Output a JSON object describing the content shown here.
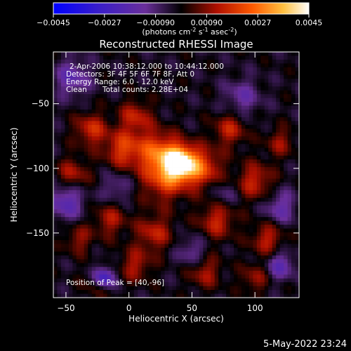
{
  "colorbar": {
    "tick_labels": [
      "-0.0045",
      "-0.0027",
      "-0.00090",
      "0.00090",
      "0.0027",
      "0.0045"
    ],
    "min": -0.0045,
    "max": 0.0045,
    "units_label": "(photons cm",
    "units_exp1": "-2",
    "units_mid1": " s",
    "units_exp2": "-1",
    "units_mid2": " asec",
    "units_exp3": "-2",
    "units_end": ")"
  },
  "title": "Reconstructed RHESSI Image",
  "annotations": {
    "time_range": "2-Apr-2006 10:38:12.000 to 10:44:12.000",
    "detectors": "Detectors: 3F 4F 5F 6F 7F 8F, Att 0",
    "energy_range": "Energy Range: 6.0 - 12.0 keV",
    "clean_label": "Clean",
    "total_counts": "Total counts: 2.28E+04",
    "peak_position": "Position of Peak = [40,-96]"
  },
  "timestamp": "5-May-2022 23:24",
  "chart_data": {
    "type": "heatmap",
    "title": "Reconstructed RHESSI Image",
    "xlabel": "Heliocentric X (arcsec)",
    "ylabel": "Heliocentric Y (arcsec)",
    "xlim": [
      -60,
      135
    ],
    "ylim": [
      -200,
      -10
    ],
    "x_ticks": [
      -50,
      0,
      50,
      100
    ],
    "y_ticks": [
      -50,
      -100,
      -150
    ],
    "x_tick_labels": [
      "−50",
      "0",
      "50",
      "100"
    ],
    "y_tick_labels": [
      "−50",
      "−100",
      "−150"
    ],
    "value_range": [
      -0.0045,
      0.0045
    ],
    "peak": {
      "x": 40,
      "y": -96,
      "value": 0.0045
    },
    "colors": {
      "negative_min": "#0000ff",
      "negative_mid": "#7a3ca8",
      "zero": "#000000",
      "positive_low": "#b81800",
      "positive_mid": "#ff6a00",
      "positive_high": "#ffe060",
      "positive_max": "#ffffff"
    },
    "blobs": [
      {
        "x": 40,
        "y": -96,
        "amp": 0.0046,
        "sigma": 9
      },
      {
        "x": 22,
        "y": -88,
        "amp": 0.0024,
        "sigma": 12
      },
      {
        "x": 58,
        "y": -100,
        "amp": 0.0022,
        "sigma": 11
      },
      {
        "x": 28,
        "y": -110,
        "amp": 0.0018,
        "sigma": 12
      },
      {
        "x": -5,
        "y": -85,
        "amp": 0.002,
        "sigma": 10
      },
      {
        "x": -30,
        "y": -70,
        "amp": 0.0018,
        "sigma": 9
      },
      {
        "x": -45,
        "y": -105,
        "amp": 0.0015,
        "sigma": 9
      },
      {
        "x": 5,
        "y": -60,
        "amp": 0.0016,
        "sigma": 9
      },
      {
        "x": 80,
        "y": -70,
        "amp": 0.0016,
        "sigma": 9
      },
      {
        "x": 100,
        "y": -110,
        "amp": 0.0017,
        "sigma": 10
      },
      {
        "x": 120,
        "y": -80,
        "amp": 0.0012,
        "sigma": 8
      },
      {
        "x": 70,
        "y": -140,
        "amp": 0.0017,
        "sigma": 10
      },
      {
        "x": 110,
        "y": -155,
        "amp": 0.0016,
        "sigma": 9
      },
      {
        "x": 20,
        "y": -150,
        "amp": 0.0016,
        "sigma": 10
      },
      {
        "x": -15,
        "y": -140,
        "amp": 0.0014,
        "sigma": 9
      },
      {
        "x": -40,
        "y": -155,
        "amp": 0.0012,
        "sigma": 8
      },
      {
        "x": 5,
        "y": -175,
        "amp": 0.0014,
        "sigma": 9
      },
      {
        "x": 60,
        "y": -180,
        "amp": 0.0014,
        "sigma": 9
      },
      {
        "x": 100,
        "y": -185,
        "amp": 0.0012,
        "sigma": 8
      },
      {
        "x": -25,
        "y": -190,
        "amp": 0.001,
        "sigma": 8
      },
      {
        "x": -20,
        "y": -185,
        "amp": -0.003,
        "sigma": 6
      },
      {
        "x": -50,
        "y": -125,
        "amp": -0.0018,
        "sigma": 10
      },
      {
        "x": -45,
        "y": -30,
        "amp": -0.0015,
        "sigma": 10
      },
      {
        "x": 120,
        "y": -130,
        "amp": -0.0014,
        "sigma": 9
      },
      {
        "x": 120,
        "y": -175,
        "amp": -0.0016,
        "sigma": 8
      },
      {
        "x": 90,
        "y": -45,
        "amp": -0.0012,
        "sigma": 10
      },
      {
        "x": 50,
        "y": -165,
        "amp": -0.0012,
        "sigma": 8
      },
      {
        "x": -10,
        "y": -115,
        "amp": -0.001,
        "sigma": 8
      },
      {
        "x": 75,
        "y": -120,
        "amp": -0.0009,
        "sigma": 8
      }
    ]
  }
}
